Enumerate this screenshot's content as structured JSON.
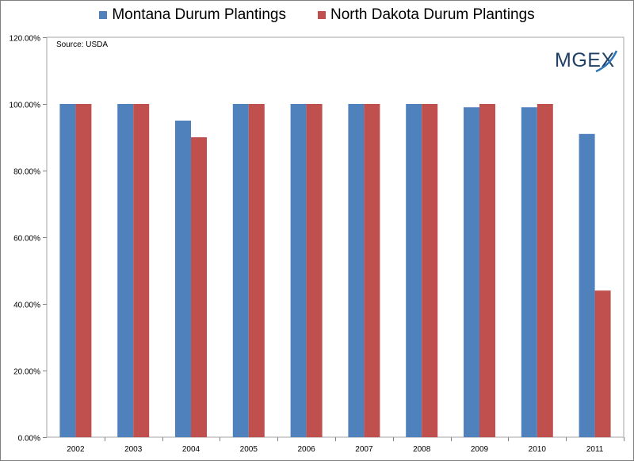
{
  "chart_data": {
    "type": "bar",
    "categories": [
      "2002",
      "2003",
      "2004",
      "2005",
      "2006",
      "2007",
      "2008",
      "2009",
      "2010",
      "2011"
    ],
    "series": [
      {
        "name": "Montana Durum Plantings",
        "color": "#4f81bd",
        "values": [
          100,
          100,
          95,
          100,
          100,
          100,
          100,
          99,
          99,
          91
        ]
      },
      {
        "name": "North Dakota Durum Plantings",
        "color": "#c0504d",
        "values": [
          100,
          100,
          90,
          100,
          100,
          100,
          100,
          100,
          100,
          44
        ]
      }
    ],
    "yticks": [
      "0.00%",
      "20.00%",
      "40.00%",
      "60.00%",
      "80.00%",
      "100.00%",
      "120.00%"
    ],
    "ylim": [
      0,
      120
    ],
    "ystep": 20,
    "annotation": "Source: USDA",
    "grid": true,
    "legend_position": "top-center"
  },
  "logo": {
    "text": "MGE",
    "accent_letter": "X"
  }
}
